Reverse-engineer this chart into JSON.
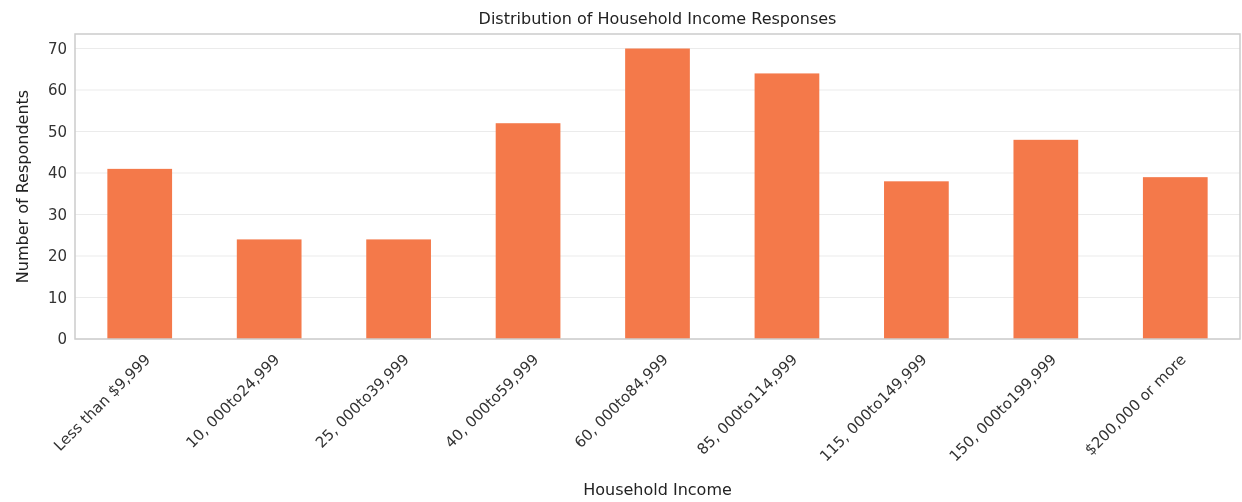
{
  "chart_data": {
    "type": "bar",
    "title": "Distribution of Household Income Responses",
    "xlabel": "Household Income",
    "ylabel": "Number of Respondents",
    "categories": [
      "Less than $9,999",
      "10, 000to24,999",
      "25, 000to39,999",
      "40, 000to59,999",
      "60, 000to84,999",
      "85, 000to114,999",
      "115, 000to149,999",
      "150, 000to199,999",
      "$200,000 or more"
    ],
    "values": [
      41,
      24,
      24,
      52,
      70,
      64,
      38,
      48,
      39
    ],
    "color": "#f4794a",
    "ylim": [
      0,
      73.5
    ],
    "yticks": [
      0,
      10,
      20,
      30,
      40,
      50,
      60,
      70
    ],
    "grid": "y"
  }
}
